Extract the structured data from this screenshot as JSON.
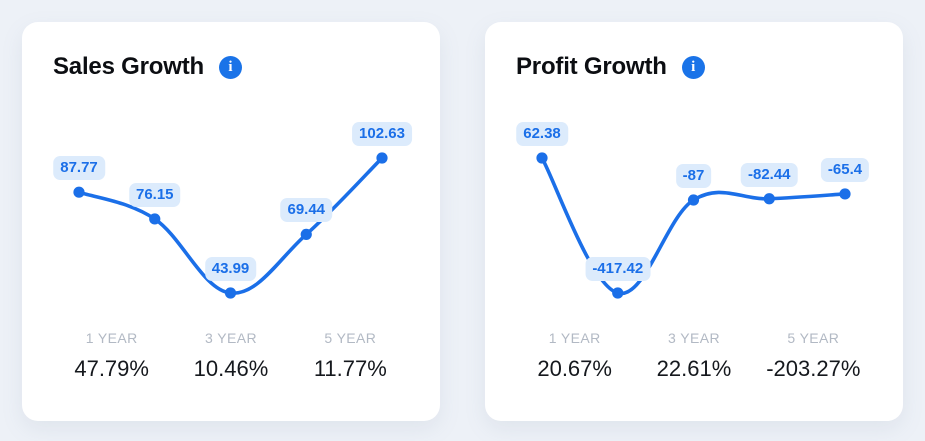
{
  "colors": {
    "page_bg": "#edf1f7",
    "card_bg": "#ffffff",
    "accent_blue": "#1b6fe8",
    "info_icon_blue": "#1a73e8",
    "bubble_bg": "#dcebfc",
    "stat_label_gray": "#b2b9c4",
    "stat_value_dark": "#15181d",
    "title_dark": "#0c0e12"
  },
  "icons": {
    "info_glyph": "i"
  },
  "chart_data": [
    {
      "type": "line",
      "title": "Sales Growth",
      "values": [
        87.77,
        76.15,
        43.99,
        69.44,
        102.63
      ],
      "point_labels": [
        "87.77",
        "76.15",
        "43.99",
        "69.44",
        "102.63"
      ],
      "line_color": "#1b6fe8",
      "label_bg": "#dcebfc",
      "label_color": "#1b6fe8",
      "grid": false,
      "axes": "hidden",
      "legend": "none",
      "summary": [
        {
          "label": "1 YEAR",
          "value": "47.79%"
        },
        {
          "label": "3 YEAR",
          "value": "10.46%"
        },
        {
          "label": "5 YEAR",
          "value": "11.77%"
        }
      ]
    },
    {
      "type": "line",
      "title": "Profit Growth",
      "values": [
        62.38,
        -417.42,
        -87,
        -82.44,
        -65.4
      ],
      "point_labels": [
        "62.38",
        "-417.42",
        "-87",
        "-82.44",
        "-65.4"
      ],
      "line_color": "#1b6fe8",
      "label_bg": "#dcebfc",
      "label_color": "#1b6fe8",
      "grid": false,
      "axes": "hidden",
      "legend": "none",
      "summary": [
        {
          "label": "1 YEAR",
          "value": "20.67%"
        },
        {
          "label": "3 YEAR",
          "value": "22.61%"
        },
        {
          "label": "5 YEAR",
          "value": "-203.27%"
        }
      ]
    }
  ]
}
